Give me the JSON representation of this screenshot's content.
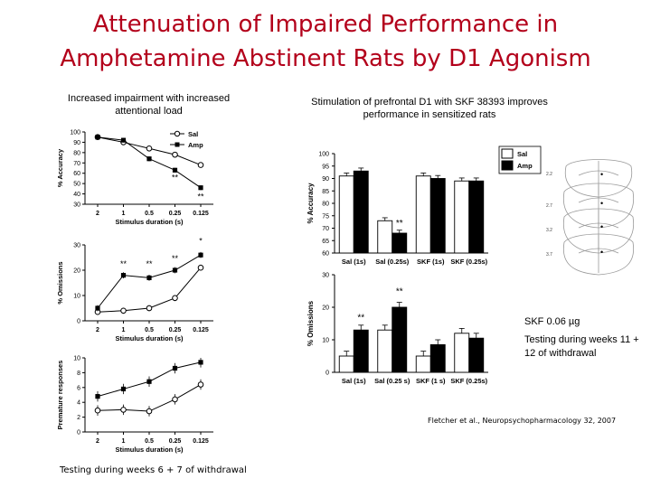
{
  "page": {
    "title_line1": "Attenuation of Impaired Performance in",
    "title_line2": "Amphetamine Abstinent Rats by D1 Agonism",
    "left_heading": "Increased impairment with increased attentional load",
    "right_heading": "Stimulation of prefrontal D1 with SKF 38393 improves performance in sensitized rats",
    "left_footer": "Testing during weeks 6 + 7 of withdrawal",
    "dose_note": "SKF 0.06 µg",
    "testing_note": "Testing during weeks 11 + 12 of withdrawal",
    "citation": "Fletcher et al., Neuropsychopharmacology 32, 2007"
  },
  "colors": {
    "title": "#b3001b",
    "sal": "#ffffff",
    "amp": "#000000"
  },
  "chart_data": [
    {
      "type": "line",
      "xlabel": "Stimulus duration (s)",
      "ylabel": "% Accuracy",
      "ylim": [
        30,
        100
      ],
      "yticks": [
        30,
        40,
        50,
        60,
        70,
        80,
        90,
        100
      ],
      "categories": [
        "2",
        "1",
        "0.5",
        "0.25",
        "0.125"
      ],
      "legend": "top-right",
      "series": [
        {
          "name": "Sal",
          "marker": "open-circle",
          "values": [
            95,
            90,
            84,
            78,
            68
          ]
        },
        {
          "name": "Amp",
          "marker": "filled-square",
          "values": [
            95,
            92,
            74,
            63,
            46
          ]
        }
      ],
      "annotations": [
        {
          "text": "*",
          "category": "0.5",
          "value": 69
        },
        {
          "text": "**",
          "category": "0.25",
          "value": 53
        },
        {
          "text": "**",
          "category": "0.125",
          "value": 35
        }
      ]
    },
    {
      "type": "line",
      "xlabel": "Stimulus duration (s)",
      "ylabel": "% Omissions",
      "ylim": [
        0,
        30
      ],
      "yticks": [
        0,
        10,
        20,
        30
      ],
      "categories": [
        "2",
        "1",
        "0.5",
        "0.25",
        "0.125"
      ],
      "series": [
        {
          "name": "Sal",
          "marker": "open-circle",
          "values": [
            3.5,
            4,
            5,
            9,
            21
          ]
        },
        {
          "name": "Amp",
          "marker": "filled-square",
          "values": [
            5,
            18,
            17,
            20,
            26
          ]
        }
      ],
      "annotations": [
        {
          "text": "**",
          "category": "1",
          "value": 21.5
        },
        {
          "text": "**",
          "category": "0.5",
          "value": 21.5
        },
        {
          "text": "**",
          "category": "0.25",
          "value": 23.5
        },
        {
          "text": "*",
          "category": "0.125",
          "value": 30.5
        }
      ]
    },
    {
      "type": "line",
      "xlabel": "Stimulus duration (s)",
      "ylabel": "Premature responses",
      "ylim": [
        0,
        10
      ],
      "yticks": [
        0,
        2,
        4,
        6,
        8,
        10
      ],
      "categories": [
        "2",
        "1",
        "0.5",
        "0.25",
        "0.125"
      ],
      "series": [
        {
          "name": "Sal",
          "marker": "open-circle",
          "values": [
            2.9,
            3,
            2.8,
            4.4,
            6.4
          ]
        },
        {
          "name": "Amp",
          "marker": "filled-square",
          "values": [
            4.8,
            5.8,
            6.8,
            8.6,
            9.4
          ]
        }
      ]
    },
    {
      "type": "bar",
      "ylabel": "% Accuracy",
      "ylim": [
        60,
        100
      ],
      "yticks": [
        60,
        65,
        70,
        75,
        80,
        85,
        90,
        95,
        100
      ],
      "categories": [
        "Sal (1s)",
        "Sal (0.25s)",
        "SKF (1s)",
        "SKF (0.25s)"
      ],
      "legend": "top-right",
      "series": [
        {
          "name": "Sal",
          "values": [
            91,
            73,
            91,
            89
          ]
        },
        {
          "name": "Amp",
          "values": [
            93,
            68,
            90,
            89
          ]
        }
      ],
      "annotations": [
        {
          "text": "**",
          "category": "Sal (0.25s)",
          "value": 71
        }
      ]
    },
    {
      "type": "bar",
      "ylabel": "% Omissions",
      "ylim": [
        0,
        30
      ],
      "yticks": [
        0,
        10,
        20,
        30
      ],
      "categories": [
        "Sal (1s)",
        "Sal (0.25 s)",
        "SKF (1 s)",
        "SKF (0.25s)"
      ],
      "series": [
        {
          "name": "Sal",
          "values": [
            5,
            13,
            5,
            12
          ]
        },
        {
          "name": "Amp",
          "values": [
            13,
            20,
            8.5,
            10.5
          ]
        }
      ],
      "annotations": [
        {
          "text": "**",
          "category": "Sal (1s)",
          "value": 16
        },
        {
          "text": "**",
          "category": "Sal (0.25 s)",
          "value": 24
        }
      ]
    }
  ]
}
